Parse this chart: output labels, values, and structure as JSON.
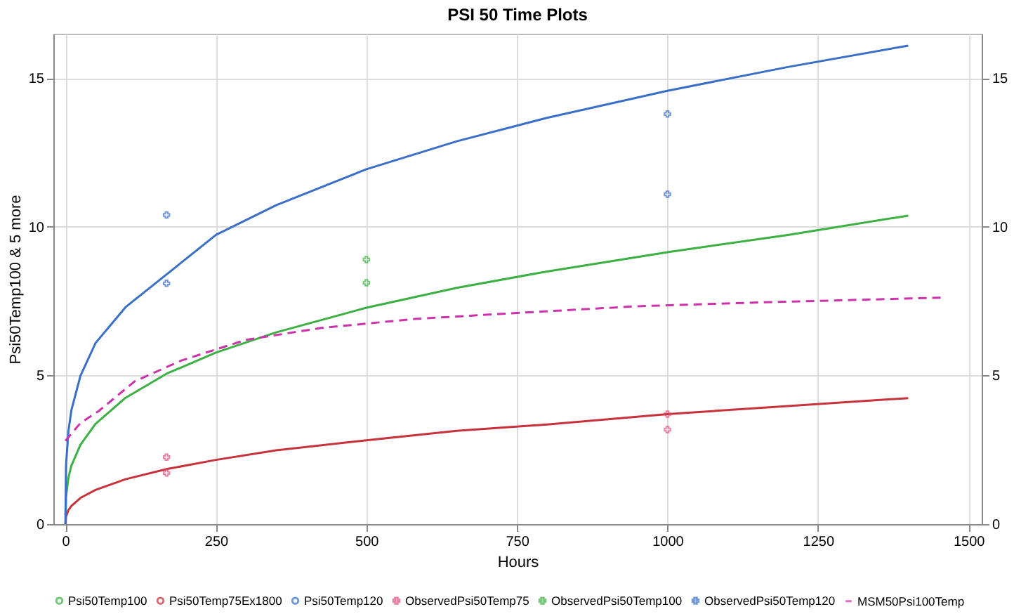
{
  "chart_data": {
    "type": "line",
    "title": "PSI 50 Time Plots",
    "xlabel": "Hours",
    "ylabel": "Psi50Temp100 & 5 more",
    "xlim": [
      -20,
      1522
    ],
    "xticks": [
      0,
      250,
      500,
      750,
      {
        "value": 1000,
        "label": "1000"
      },
      {
        "value": 1250,
        "label": "1250"
      },
      {
        "value": 1500,
        "label": "1500"
      }
    ],
    "ylim": [
      0,
      16.5
    ],
    "yticks": [
      0,
      5,
      10,
      15
    ],
    "y2lim": [
      0,
      16.5
    ],
    "y2ticks": [
      0,
      5,
      10,
      15
    ],
    "grid": true,
    "legend": "bottom",
    "series": [
      {
        "name": "Psi50Temp100",
        "color": "#3cb043",
        "line_style": "solid",
        "x": [
          0,
          1,
          5,
          10,
          25,
          50,
          100,
          168,
          250,
          350,
          500,
          650,
          800,
          1000,
          1200,
          1400
        ],
        "values": [
          0.3,
          0.91,
          1.56,
          1.97,
          2.67,
          3.37,
          4.25,
          5.06,
          5.77,
          6.45,
          7.28,
          7.95,
          8.5,
          9.15,
          9.73,
          10.38
        ]
      },
      {
        "name": "Psi50Temp75Ex1800",
        "color": "#c8323c",
        "line_style": "solid",
        "x": [
          0,
          1,
          5,
          10,
          25,
          50,
          100,
          168,
          250,
          350,
          500,
          650,
          800,
          1000,
          1200,
          1400
        ],
        "values": [
          0,
          0.25,
          0.47,
          0.61,
          0.88,
          1.15,
          1.51,
          1.85,
          2.16,
          2.48,
          2.82,
          3.14,
          3.35,
          3.7,
          3.97,
          4.24
        ]
      },
      {
        "name": "Psi50Temp120",
        "color": "#3a6fc8",
        "line_style": "solid",
        "x": [
          0,
          1,
          5,
          10,
          25,
          50,
          100,
          168,
          250,
          350,
          500,
          650,
          800,
          1000,
          1200,
          1400
        ],
        "values": [
          0,
          1.97,
          3.13,
          3.84,
          4.99,
          6.09,
          7.3,
          8.4,
          9.73,
          10.73,
          11.94,
          12.88,
          13.67,
          14.58,
          15.38,
          16.1
        ]
      },
      {
        "name": "ObservedPsi50Temp75",
        "type": "scatter",
        "marker": "cross",
        "color": "#e0507a",
        "x": [
          168,
          168,
          1000,
          1000
        ],
        "values": [
          2.25,
          1.72,
          3.7,
          3.18
        ]
      },
      {
        "name": "ObservedPsi50Temp100",
        "type": "scatter",
        "marker": "cross",
        "color": "#3cb043",
        "x": [
          500,
          500
        ],
        "values": [
          8.9,
          8.12
        ]
      },
      {
        "name": "ObservedPsi50Temp120",
        "type": "scatter",
        "marker": "cross",
        "color": "#3a6fc8",
        "x": [
          168,
          168,
          1000,
          1000
        ],
        "values": [
          10.4,
          8.1,
          13.8,
          11.1
        ]
      },
      {
        "name": "MSM50Psi100Temp",
        "color": "#cc33aa",
        "line_style": "dashed",
        "x": [
          0,
          25,
          55,
          115,
          192,
          300,
          425,
          580,
          720,
          950,
          1190,
          1460
        ],
        "values": [
          2.8,
          3.4,
          3.8,
          4.8,
          5.5,
          6.2,
          6.6,
          6.9,
          7.07,
          7.33,
          7.48,
          7.62
        ]
      }
    ]
  }
}
